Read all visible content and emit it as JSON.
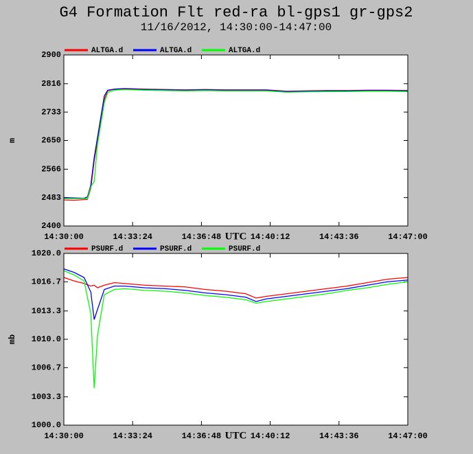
{
  "header": {
    "title": "G4 Formation Flt red-ra bl-gps1 gr-gps2",
    "subtitle": "11/16/2012, 14:30:00-14:47:00"
  },
  "chart_data": [
    {
      "type": "line",
      "ylabel": "m",
      "xlabel": "UTC",
      "x": [
        "14:30:00",
        "14:30:30",
        "14:31:00",
        "14:31:10",
        "14:31:20",
        "14:31:30",
        "14:31:40",
        "14:31:50",
        "14:32:00",
        "14:32:10",
        "14:32:30",
        "14:33:00",
        "14:34:00",
        "14:35:00",
        "14:36:00",
        "14:37:00",
        "14:38:00",
        "14:39:00",
        "14:40:00",
        "14:41:00",
        "14:42:00",
        "14:43:00",
        "14:44:00",
        "14:45:00",
        "14:46:00",
        "14:47:00"
      ],
      "series": [
        {
          "name": "ALTGA.d",
          "color": "#ff0000",
          "values": [
            2476,
            2475,
            2477,
            2478,
            2510,
            2590,
            2650,
            2710,
            2770,
            2795,
            2800,
            2802,
            2800,
            2799,
            2798,
            2799,
            2798,
            2798,
            2798,
            2794,
            2795,
            2796,
            2796,
            2797,
            2797,
            2796
          ]
        },
        {
          "name": "ALTGA.d",
          "color": "#0000ff",
          "values": [
            2483,
            2482,
            2481,
            2485,
            2520,
            2600,
            2660,
            2720,
            2780,
            2797,
            2800,
            2801,
            2799,
            2798,
            2797,
            2798,
            2797,
            2797,
            2797,
            2793,
            2794,
            2795,
            2795,
            2796,
            2796,
            2795
          ]
        },
        {
          "name": "ALTGA.d",
          "color": "#00ff00",
          "values": [
            2480,
            2480,
            2480,
            2480,
            2515,
            2530,
            2640,
            2700,
            2760,
            2790,
            2797,
            2799,
            2797,
            2796,
            2795,
            2796,
            2795,
            2795,
            2795,
            2791,
            2792,
            2793,
            2793,
            2794,
            2794,
            2793
          ]
        }
      ],
      "xlim": [
        "14:30:00",
        "14:47:00"
      ],
      "xticks": [
        "14:30:00",
        "14:33:24",
        "14:36:48",
        "14:40:12",
        "14:43:36",
        "14:47:00"
      ],
      "ylim": [
        2400,
        2900
      ],
      "yticks": [
        2400,
        2483,
        2566,
        2650,
        2733,
        2816,
        2900
      ]
    },
    {
      "type": "line",
      "ylabel": "mb",
      "xlabel": "UTC",
      "x": [
        "14:30:00",
        "14:30:30",
        "14:31:00",
        "14:31:20",
        "14:31:30",
        "14:31:40",
        "14:32:00",
        "14:32:30",
        "14:33:00",
        "14:34:00",
        "14:35:00",
        "14:36:00",
        "14:37:00",
        "14:38:00",
        "14:39:00",
        "14:39:30",
        "14:40:00",
        "14:41:00",
        "14:42:00",
        "14:43:00",
        "14:44:00",
        "14:45:00",
        "14:46:00",
        "14:47:00"
      ],
      "series": [
        {
          "name": "PSURF.d",
          "color": "#ff0000",
          "values": [
            1017.2,
            1016.8,
            1016.5,
            1016.2,
            1016.3,
            1016.0,
            1016.3,
            1016.6,
            1016.5,
            1016.3,
            1016.2,
            1016.1,
            1015.8,
            1015.6,
            1015.3,
            1014.8,
            1015.0,
            1015.3,
            1015.6,
            1015.9,
            1016.2,
            1016.6,
            1017.0,
            1017.2
          ]
        },
        {
          "name": "PSURF.d",
          "color": "#0000ff",
          "values": [
            1018.2,
            1017.8,
            1017.2,
            1015.5,
            1012.3,
            1013.5,
            1015.8,
            1016.2,
            1016.2,
            1016.0,
            1015.9,
            1015.7,
            1015.4,
            1015.2,
            1014.9,
            1014.4,
            1014.7,
            1015.0,
            1015.3,
            1015.6,
            1015.9,
            1016.3,
            1016.7,
            1016.9
          ]
        },
        {
          "name": "PSURF.d",
          "color": "#00ff00",
          "values": [
            1018.0,
            1017.5,
            1016.8,
            1013.0,
            1004.3,
            1010.5,
            1015.2,
            1015.8,
            1015.9,
            1015.7,
            1015.6,
            1015.4,
            1015.1,
            1014.9,
            1014.6,
            1014.2,
            1014.4,
            1014.7,
            1015.0,
            1015.3,
            1015.7,
            1016.0,
            1016.4,
            1016.7
          ]
        }
      ],
      "xlim": [
        "14:30:00",
        "14:47:00"
      ],
      "xticks": [
        "14:30:00",
        "14:33:24",
        "14:36:48",
        "14:40:12",
        "14:43:36",
        "14:47:00"
      ],
      "ylim": [
        1000,
        1020
      ],
      "yticks": [
        {
          "value": 1000,
          "label": "1000.0"
        },
        1003.3,
        1006.7,
        {
          "value": 1010,
          "label": "1010.0"
        },
        1013.3,
        1016.7,
        {
          "value": 1020,
          "label": "1020.0"
        }
      ]
    }
  ]
}
